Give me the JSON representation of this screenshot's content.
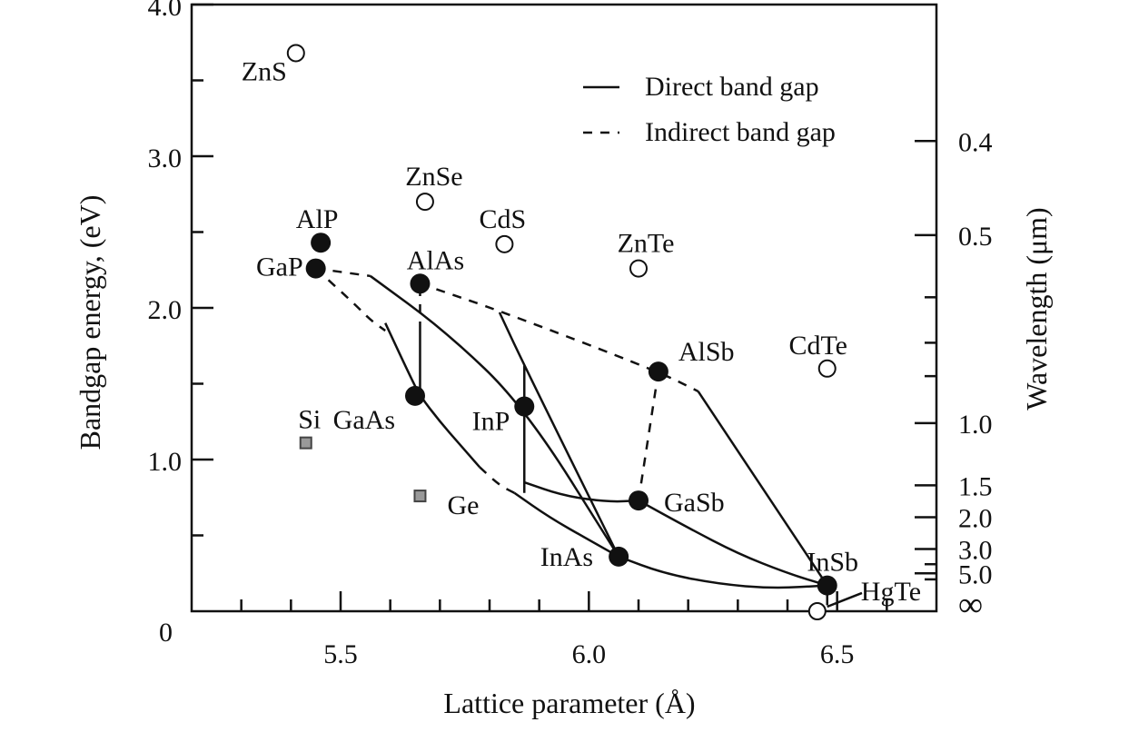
{
  "chart_data": {
    "type": "scatter",
    "title": "",
    "xlabel": "Lattice parameter (Å)",
    "ylabel": "Bandgap energy, (eV)",
    "y2label": "Wavelength (μm)",
    "xlim": [
      5.2,
      6.7
    ],
    "ylim": [
      0,
      4.0
    ],
    "x_ticks": [
      {
        "value": 5.5,
        "label": "5.5"
      },
      {
        "value": 6.0,
        "label": "6.0"
      },
      {
        "value": 6.5,
        "label": "6.5"
      }
    ],
    "x_minor_ticks": [
      5.3,
      5.4,
      5.6,
      5.7,
      5.8,
      5.9,
      6.1,
      6.2,
      6.3,
      6.4,
      6.6
    ],
    "y_ticks": [
      {
        "value": 0,
        "label": "0"
      },
      {
        "value": 1.0,
        "label": "1.0"
      },
      {
        "value": 2.0,
        "label": "2.0"
      },
      {
        "value": 3.0,
        "label": "3.0"
      },
      {
        "value": 4.0,
        "label": "4.0"
      }
    ],
    "y_minor_ticks": [
      0.5,
      1.5,
      2.5,
      3.5
    ],
    "y2_ticks": [
      {
        "energy": 3.1,
        "label": "0.4"
      },
      {
        "energy": 2.48,
        "label": "0.5"
      },
      {
        "energy": 1.24,
        "label": "1.0"
      },
      {
        "energy": 0.83,
        "label": "1.5"
      },
      {
        "energy": 0.62,
        "label": "2.0"
      },
      {
        "energy": 0.41,
        "label": "3.0"
      },
      {
        "energy": 0.25,
        "label": "5.0"
      },
      {
        "energy": 0.0,
        "label": "∞"
      }
    ],
    "y2_minor_ticks": [
      2.07,
      1.77,
      1.55,
      0.31,
      0.21
    ],
    "legend": {
      "placement": "top-right",
      "entries": [
        {
          "label": "Direct band gap",
          "style": "solid"
        },
        {
          "label": "Indirect band gap",
          "style": "dashed"
        }
      ]
    },
    "series": [
      {
        "marker": "filled-circle",
        "points": [
          {
            "label": "AlP",
            "x": 5.46,
            "y": 2.43
          },
          {
            "label": "GaP",
            "x": 5.45,
            "y": 2.26
          },
          {
            "label": "AlAs",
            "x": 5.66,
            "y": 2.16
          },
          {
            "label": "GaAs",
            "x": 5.65,
            "y": 1.42
          },
          {
            "label": "InP",
            "x": 5.87,
            "y": 1.35
          },
          {
            "label": "AlSb",
            "x": 6.14,
            "y": 1.58
          },
          {
            "label": "GaSb",
            "x": 6.1,
            "y": 0.73
          },
          {
            "label": "InAs",
            "x": 6.06,
            "y": 0.36
          },
          {
            "label": "InSb",
            "x": 6.48,
            "y": 0.17
          }
        ]
      },
      {
        "marker": "open-circle",
        "points": [
          {
            "label": "ZnS",
            "x": 5.41,
            "y": 3.68
          },
          {
            "label": "ZnSe",
            "x": 5.67,
            "y": 2.7
          },
          {
            "label": "CdS",
            "x": 5.83,
            "y": 2.42
          },
          {
            "label": "ZnTe",
            "x": 6.1,
            "y": 2.26
          },
          {
            "label": "CdTe",
            "x": 6.48,
            "y": 1.6
          },
          {
            "label": "HgTe",
            "x": 6.46,
            "y": 0.0
          }
        ]
      },
      {
        "marker": "gray-square",
        "points": [
          {
            "label": "Si",
            "x": 5.43,
            "y": 1.11
          },
          {
            "label": "Ge",
            "x": 5.66,
            "y": 0.76
          }
        ]
      }
    ],
    "curves": [
      {
        "style": "dashed",
        "points": [
          [
            5.45,
            2.26
          ],
          [
            5.56,
            2.21
          ]
        ]
      },
      {
        "style": "solid",
        "points": [
          [
            5.56,
            2.21
          ],
          [
            5.71,
            1.85
          ],
          [
            5.87,
            1.35
          ],
          [
            6.06,
            0.36
          ]
        ]
      },
      {
        "style": "dashed",
        "points": [
          [
            5.45,
            2.26
          ],
          [
            5.53,
            2.02
          ],
          [
            5.56,
            1.92
          ],
          [
            5.59,
            1.85
          ]
        ]
      },
      {
        "style": "solid",
        "points": [
          [
            5.59,
            1.9
          ],
          [
            5.64,
            1.55
          ],
          [
            5.66,
            1.42
          ],
          [
            5.7,
            1.25
          ],
          [
            5.74,
            1.1
          ],
          [
            5.78,
            0.95
          ]
        ]
      },
      {
        "style": "dashed",
        "points": [
          [
            5.78,
            0.95
          ],
          [
            5.82,
            0.83
          ],
          [
            5.85,
            0.78
          ]
        ]
      },
      {
        "style": "solid",
        "points": [
          [
            5.85,
            0.78
          ],
          [
            5.92,
            0.62
          ],
          [
            6.0,
            0.47
          ],
          [
            6.06,
            0.36
          ]
        ]
      },
      {
        "style": "solid",
        "points": [
          [
            5.66,
            1.42
          ],
          [
            5.66,
            1.85
          ]
        ]
      },
      {
        "style": "dashed",
        "points": [
          [
            5.66,
            1.85
          ],
          [
            5.66,
            2.16
          ]
        ]
      },
      {
        "style": "dashed",
        "points": [
          [
            5.66,
            2.16
          ],
          [
            5.83,
            1.97
          ],
          [
            6.14,
            1.58
          ],
          [
            6.22,
            1.45
          ]
        ]
      },
      {
        "style": "solid",
        "points": [
          [
            6.22,
            1.45
          ],
          [
            6.48,
            0.17
          ]
        ]
      },
      {
        "style": "solid",
        "points": [
          [
            5.87,
            0.78
          ],
          [
            5.87,
            1.62
          ]
        ]
      },
      {
        "style": "solid",
        "points": [
          [
            5.82,
            1.97
          ],
          [
            5.87,
            1.62
          ],
          [
            6.06,
            0.36
          ]
        ]
      },
      {
        "style": "solid",
        "points": [
          [
            5.87,
            0.85
          ],
          [
            5.95,
            0.76
          ],
          [
            6.04,
            0.72
          ],
          [
            6.1,
            0.73
          ]
        ]
      },
      {
        "style": "dashed",
        "points": [
          [
            6.1,
            0.73
          ],
          [
            6.14,
            1.58
          ]
        ]
      },
      {
        "style": "solid",
        "points": [
          [
            6.1,
            0.73
          ],
          [
            6.2,
            0.55
          ],
          [
            6.3,
            0.38
          ],
          [
            6.4,
            0.25
          ],
          [
            6.48,
            0.17
          ]
        ]
      },
      {
        "style": "solid",
        "points": [
          [
            6.06,
            0.36
          ],
          [
            6.15,
            0.25
          ],
          [
            6.26,
            0.18
          ],
          [
            6.37,
            0.15
          ],
          [
            6.48,
            0.17
          ]
        ]
      },
      {
        "style": "solid",
        "points": [
          [
            6.48,
            0.17
          ],
          [
            6.48,
            0.04
          ]
        ]
      },
      {
        "style": "solid",
        "points": [
          [
            6.48,
            0.03
          ],
          [
            6.55,
            0.12
          ]
        ]
      }
    ]
  }
}
